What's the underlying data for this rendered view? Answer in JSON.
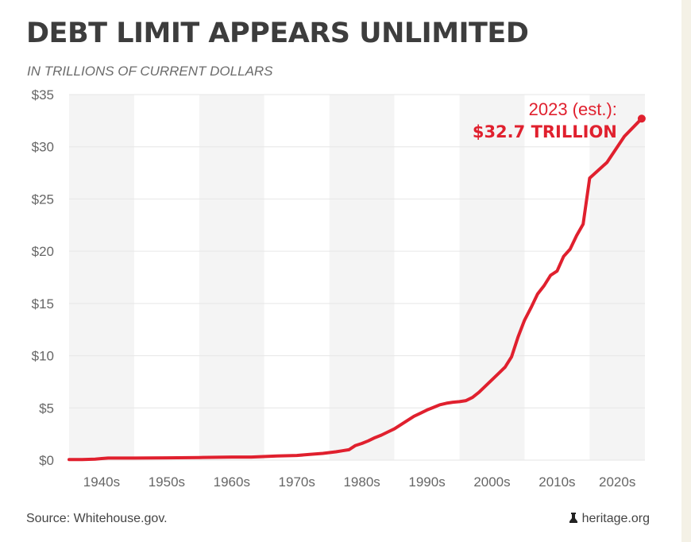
{
  "title": "DEBT LIMIT APPEARS UNLIMITED",
  "subtitle": "IN TRILLIONS OF CURRENT DOLLARS",
  "source": "Source: Whitehouse.gov.",
  "credit": "heritage.org",
  "credit_icon": "bell-icon",
  "colors": {
    "line": "#e0202e",
    "title": "#3d3d3d",
    "band": "#f4f4f4",
    "axis_text": "#666666"
  },
  "chart_data": {
    "type": "line",
    "title": "DEBT LIMIT APPEARS UNLIMITED",
    "subtitle": "IN TRILLIONS OF CURRENT DOLLARS",
    "ylim": [
      0,
      35
    ],
    "xlim": [
      1935,
      2023.5
    ],
    "y_ticks": [
      {
        "value": 0,
        "label": "$0"
      },
      {
        "value": 5,
        "label": "$5"
      },
      {
        "value": 10,
        "label": "$10"
      },
      {
        "value": 15,
        "label": "$15"
      },
      {
        "value": 20,
        "label": "$20"
      },
      {
        "value": 25,
        "label": "$25"
      },
      {
        "value": 30,
        "label": "$30"
      },
      {
        "value": 35,
        "label": "$35"
      }
    ],
    "x_bands": [
      {
        "label": "1940s",
        "start": 1935,
        "end": 1945
      },
      {
        "label": "1950s",
        "start": 1945,
        "end": 1955
      },
      {
        "label": "1960s",
        "start": 1955,
        "end": 1965
      },
      {
        "label": "1970s",
        "start": 1965,
        "end": 1975
      },
      {
        "label": "1980s",
        "start": 1975,
        "end": 1985
      },
      {
        "label": "1990s",
        "start": 1985,
        "end": 1995
      },
      {
        "label": "2000s",
        "start": 1995,
        "end": 2005
      },
      {
        "label": "2010s",
        "start": 2005,
        "end": 2015
      },
      {
        "label": "2020s",
        "start": 2015,
        "end": 2023.5
      }
    ],
    "grid": true,
    "series": [
      {
        "color": "#e0202e",
        "points": [
          [
            1935,
            0.05
          ],
          [
            1937,
            0.05
          ],
          [
            1939,
            0.1
          ],
          [
            1941,
            0.2
          ],
          [
            1940,
            0.15
          ],
          [
            1942,
            0.2
          ],
          [
            1945,
            0.2
          ],
          [
            1950,
            0.22
          ],
          [
            1955,
            0.25
          ],
          [
            1960,
            0.3
          ],
          [
            1963,
            0.3
          ],
          [
            1967,
            0.4
          ],
          [
            1970,
            0.45
          ],
          [
            1972,
            0.55
          ],
          [
            1974,
            0.65
          ],
          [
            1976,
            0.8
          ],
          [
            1977,
            0.9
          ],
          [
            1978,
            1.0
          ],
          [
            1979,
            1.4
          ],
          [
            1980,
            1.6
          ],
          [
            1981,
            1.85
          ],
          [
            1982,
            2.15
          ],
          [
            1983,
            2.4
          ],
          [
            1984,
            2.7
          ],
          [
            1985,
            3.0
          ],
          [
            1986,
            3.4
          ],
          [
            1987,
            3.8
          ],
          [
            1988,
            4.2
          ],
          [
            1989,
            4.5
          ],
          [
            1990,
            4.8
          ],
          [
            1991,
            5.05
          ],
          [
            1992,
            5.3
          ],
          [
            1993,
            5.45
          ],
          [
            1994,
            5.55
          ],
          [
            1995,
            5.6
          ],
          [
            1996,
            5.7
          ],
          [
            1997,
            6.0
          ],
          [
            1998,
            6.5
          ],
          [
            1999,
            7.1
          ],
          [
            2000,
            7.7
          ],
          [
            2001,
            8.3
          ],
          [
            2002,
            8.9
          ],
          [
            2003,
            9.9
          ],
          [
            2004,
            11.8
          ],
          [
            2005,
            13.4
          ],
          [
            2006,
            14.6
          ],
          [
            2007,
            15.9
          ],
          [
            2008,
            16.7
          ],
          [
            2009,
            17.7
          ],
          [
            2010,
            18.1
          ],
          [
            2011,
            19.5
          ],
          [
            2012,
            20.2
          ],
          [
            2013,
            21.5
          ],
          [
            2014,
            22.6
          ],
          [
            2015,
            27.0
          ],
          [
            2016,
            28.5
          ],
          [
            2017,
            31.0
          ],
          [
            2018,
            32.7
          ]
        ]
      }
    ],
    "annotation": {
      "line1": "2023 (est.):",
      "line2": "$32.7 TRILLION",
      "x": 2023,
      "y": 32.7
    }
  }
}
